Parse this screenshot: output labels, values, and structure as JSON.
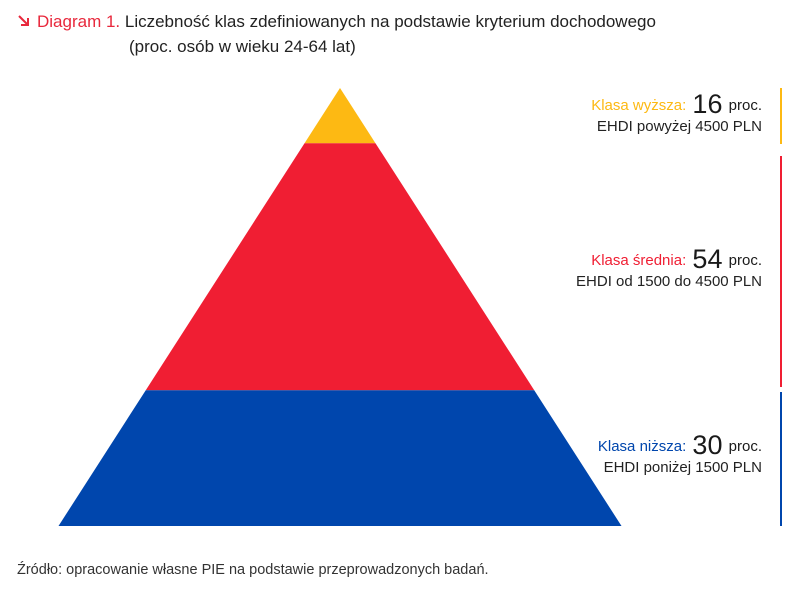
{
  "header": {
    "diagram_label": "Diagram 1.",
    "title": "Liczebność klas zdefiniowanych na podstawie kryterium dochodowego",
    "subtitle": "(proc. osób w wieku 24-64 lat)"
  },
  "chart_data": {
    "type": "pyramid",
    "title": "Liczebność klas zdefiniowanych na podstawie kryterium dochodowego",
    "subtitle": "(proc. osób w wieku 24-64 lat)",
    "unit": "proc.",
    "segments": [
      {
        "name": "Klasa wyższa:",
        "value": 16,
        "unit": "proc.",
        "description": "EHDI powyżej 4500 PLN",
        "color": "#fdb913"
      },
      {
        "name": "Klasa średnia:",
        "value": 54,
        "unit": "proc.",
        "description": "EHDI od 1500 do 4500 PLN",
        "color": "#f01e33"
      },
      {
        "name": "Klasa niższa:",
        "value": 30,
        "unit": "proc.",
        "description": "EHDI poniżej 1500 PLN",
        "color": "#0046ad"
      }
    ]
  },
  "footer": {
    "source": "Źródło: opracowanie własne PIE na podstawie przeprowadzonych badań."
  },
  "colors": {
    "accent": "#e8283c",
    "upper": "#fdb913",
    "middle": "#f01e33",
    "lower": "#0046ad"
  },
  "icons": {
    "title_arrow": "arrow-down-right-icon"
  }
}
